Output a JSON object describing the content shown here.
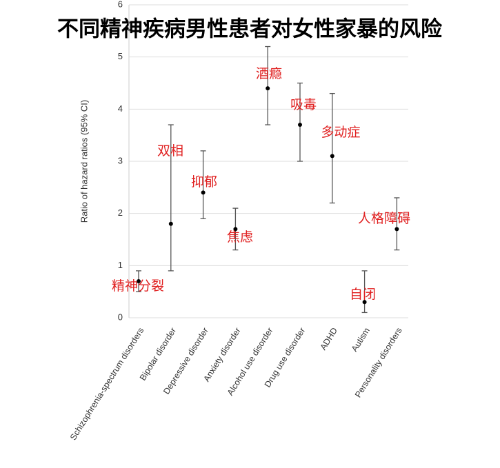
{
  "chart_data": {
    "type": "errorbar",
    "title": "不同精神疾病男性患者对女性家暴的风险",
    "y_label": "Ratio of hazard ratios (95% CI)",
    "categories": [
      "Schizophrenia-spectrum disorders",
      "Bipolar disorder",
      "Depressive disorder",
      "Anxiety disorder",
      "Alcohol use disorder",
      "Drug use disorder",
      "ADHD",
      "Autism",
      "Personality disorders"
    ],
    "annotations": [
      "精神分裂",
      "双相",
      "抑郁",
      "焦虑",
      "酒瘾",
      "吸毒",
      "多动症",
      "自闭",
      "人格障碍"
    ],
    "values": [
      0.7,
      1.8,
      2.4,
      1.7,
      4.4,
      3.7,
      3.1,
      0.3,
      1.7
    ],
    "lower": [
      0.5,
      0.9,
      1.9,
      1.3,
      3.7,
      3.0,
      2.2,
      0.1,
      1.3
    ],
    "upper": [
      0.9,
      3.7,
      3.2,
      2.1,
      5.2,
      4.5,
      4.3,
      0.9,
      2.3
    ],
    "color": "#000000",
    "error_color": "#555555",
    "annotation_color": "#e02020",
    "ylim": [
      0,
      6
    ],
    "yticks": [
      0,
      1,
      2,
      3,
      4,
      5,
      6
    ],
    "grid": true
  }
}
